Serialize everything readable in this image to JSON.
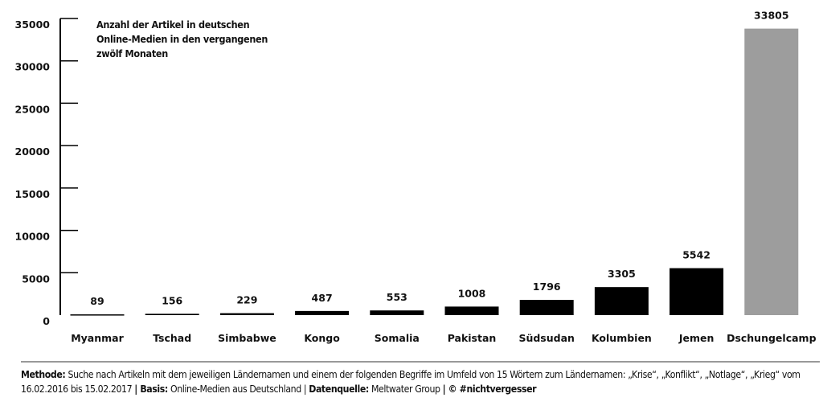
{
  "chart_data": {
    "type": "bar",
    "title": "Anzahl der Artikel in deutschen Online-Medien in den vergangenen zwölf Monaten",
    "title_lines": [
      "Anzahl der Artikel in deutschen",
      "Online-Medien in den vergangenen",
      "zwölf Monaten"
    ],
    "categories": [
      "Myanmar",
      "Tschad",
      "Simbabwe",
      "Kongo",
      "Somalia",
      "Pakistan",
      "Südsudan",
      "Kolumbien",
      "Jemen",
      "Dschungelcamp"
    ],
    "values": [
      89,
      156,
      229,
      487,
      553,
      1008,
      1796,
      3305,
      5542,
      33805
    ],
    "colors": [
      "#000000",
      "#000000",
      "#000000",
      "#000000",
      "#000000",
      "#000000",
      "#000000",
      "#000000",
      "#000000",
      "#9d9d9d"
    ],
    "ylim": [
      0,
      35000
    ],
    "yticks": [
      0,
      5000,
      10000,
      15000,
      20000,
      25000,
      30000,
      35000
    ],
    "xlabel": "",
    "ylabel": "",
    "grid": false
  },
  "footer": {
    "methode_label": "Methode:",
    "methode_text": " Suche nach Artikeln mit dem jeweiligen Ländernamen und einem der folgenden Begriffe im Umfeld von 15 Wörtern zum Ländernamen: „Krise“, „Konflikt“, „Notlage“, „Krieg“ vom 16.02.2016 bis 15.02.2017 ",
    "sep1": "| ",
    "basis_label": "Basis:",
    "basis_text": " Online-Medien aus Deutschland | ",
    "quelle_label": "Datenquelle:",
    "quelle_text": " Meltwater Group ",
    "copyright": "| © #nichtvergesser"
  }
}
